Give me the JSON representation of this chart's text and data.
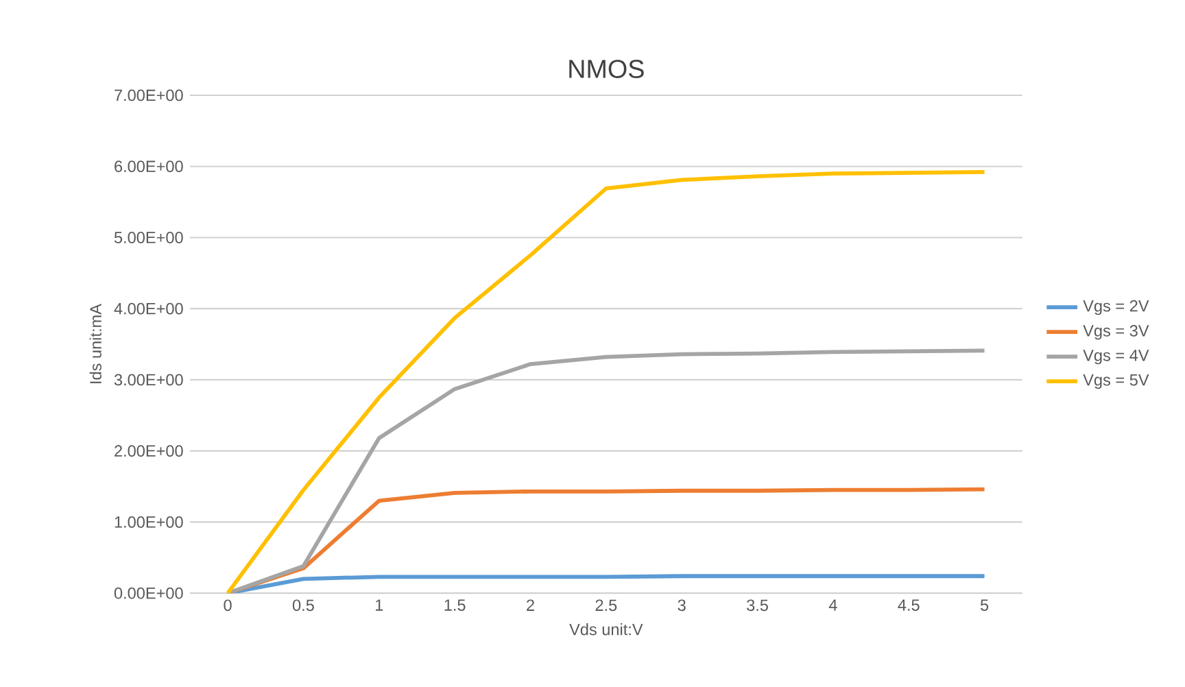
{
  "chart_data": {
    "type": "line",
    "title": "NMOS",
    "xlabel": "Vds  unit:V",
    "ylabel": "Ids  unit:mA",
    "categories": [
      "0",
      "0.5",
      "1",
      "1.5",
      "2",
      "2.5",
      "3",
      "3.5",
      "4",
      "4.5",
      "5"
    ],
    "series": [
      {
        "name": "Vgs = 2V",
        "color": "#5b9bd5",
        "values": [
          0,
          0.2,
          0.23,
          0.23,
          0.23,
          0.23,
          0.24,
          0.24,
          0.24,
          0.24,
          0.24
        ]
      },
      {
        "name": "Vgs = 3V",
        "color": "#ed7d31",
        "values": [
          0,
          0.35,
          1.3,
          1.41,
          1.43,
          1.43,
          1.44,
          1.44,
          1.45,
          1.45,
          1.46
        ]
      },
      {
        "name": "Vgs = 4V",
        "color": "#a5a5a5",
        "values": [
          0,
          0.38,
          2.18,
          2.87,
          3.22,
          3.32,
          3.36,
          3.37,
          3.39,
          3.4,
          3.41
        ]
      },
      {
        "name": "Vgs = 5V",
        "color": "#ffc000",
        "values": [
          0,
          1.45,
          2.75,
          3.87,
          4.75,
          5.69,
          5.81,
          5.86,
          5.9,
          5.91,
          5.92
        ]
      }
    ],
    "ylim": [
      0,
      7
    ],
    "yticks": [
      {
        "value": 0,
        "label": "0.00E+00"
      },
      {
        "value": 1,
        "label": "1.00E+00"
      },
      {
        "value": 2,
        "label": "2.00E+00"
      },
      {
        "value": 3,
        "label": "3.00E+00"
      },
      {
        "value": 4,
        "label": "4.00E+00"
      },
      {
        "value": 5,
        "label": "5.00E+00"
      },
      {
        "value": 6,
        "label": "6.00E+00"
      },
      {
        "value": 7,
        "label": "7.00E+00"
      }
    ],
    "grid": "y",
    "legend": "right"
  }
}
